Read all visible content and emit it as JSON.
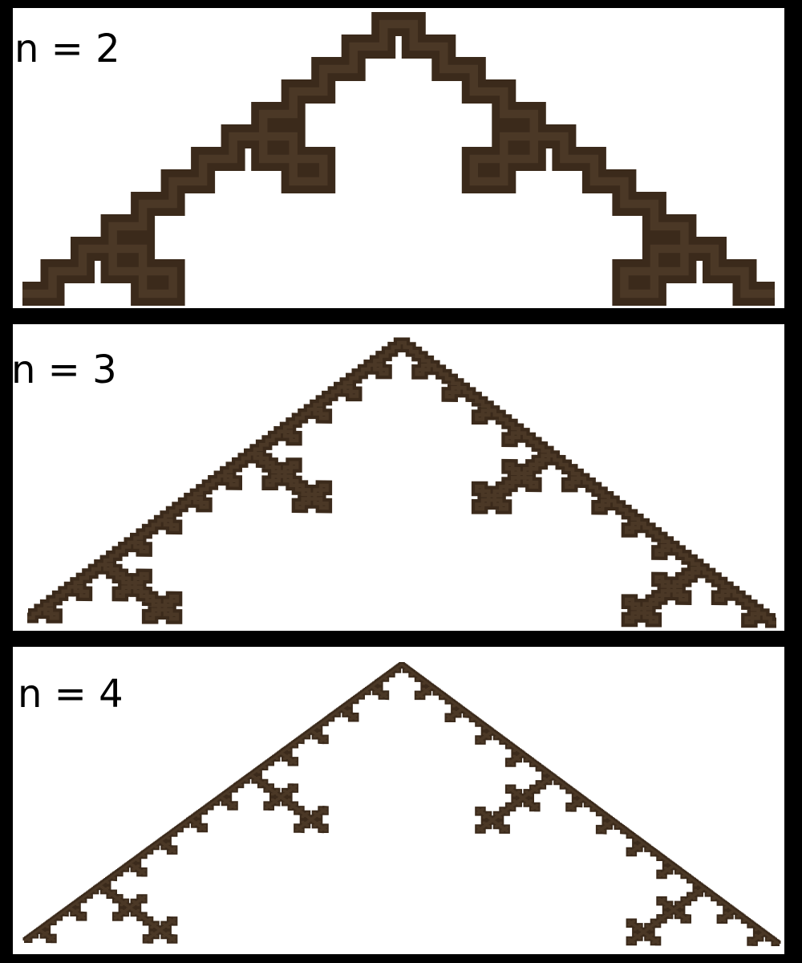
{
  "colors": {
    "background": "#000000",
    "panel": "#ffffff",
    "stroke": "#3b2a1b",
    "stroke_light": "#5a4330",
    "label": "#000000"
  },
  "panels": [
    {
      "label": "n = 2",
      "iterations": 2
    },
    {
      "label": "n = 3",
      "iterations": 3
    },
    {
      "label": "n = 4",
      "iterations": 4
    }
  ]
}
